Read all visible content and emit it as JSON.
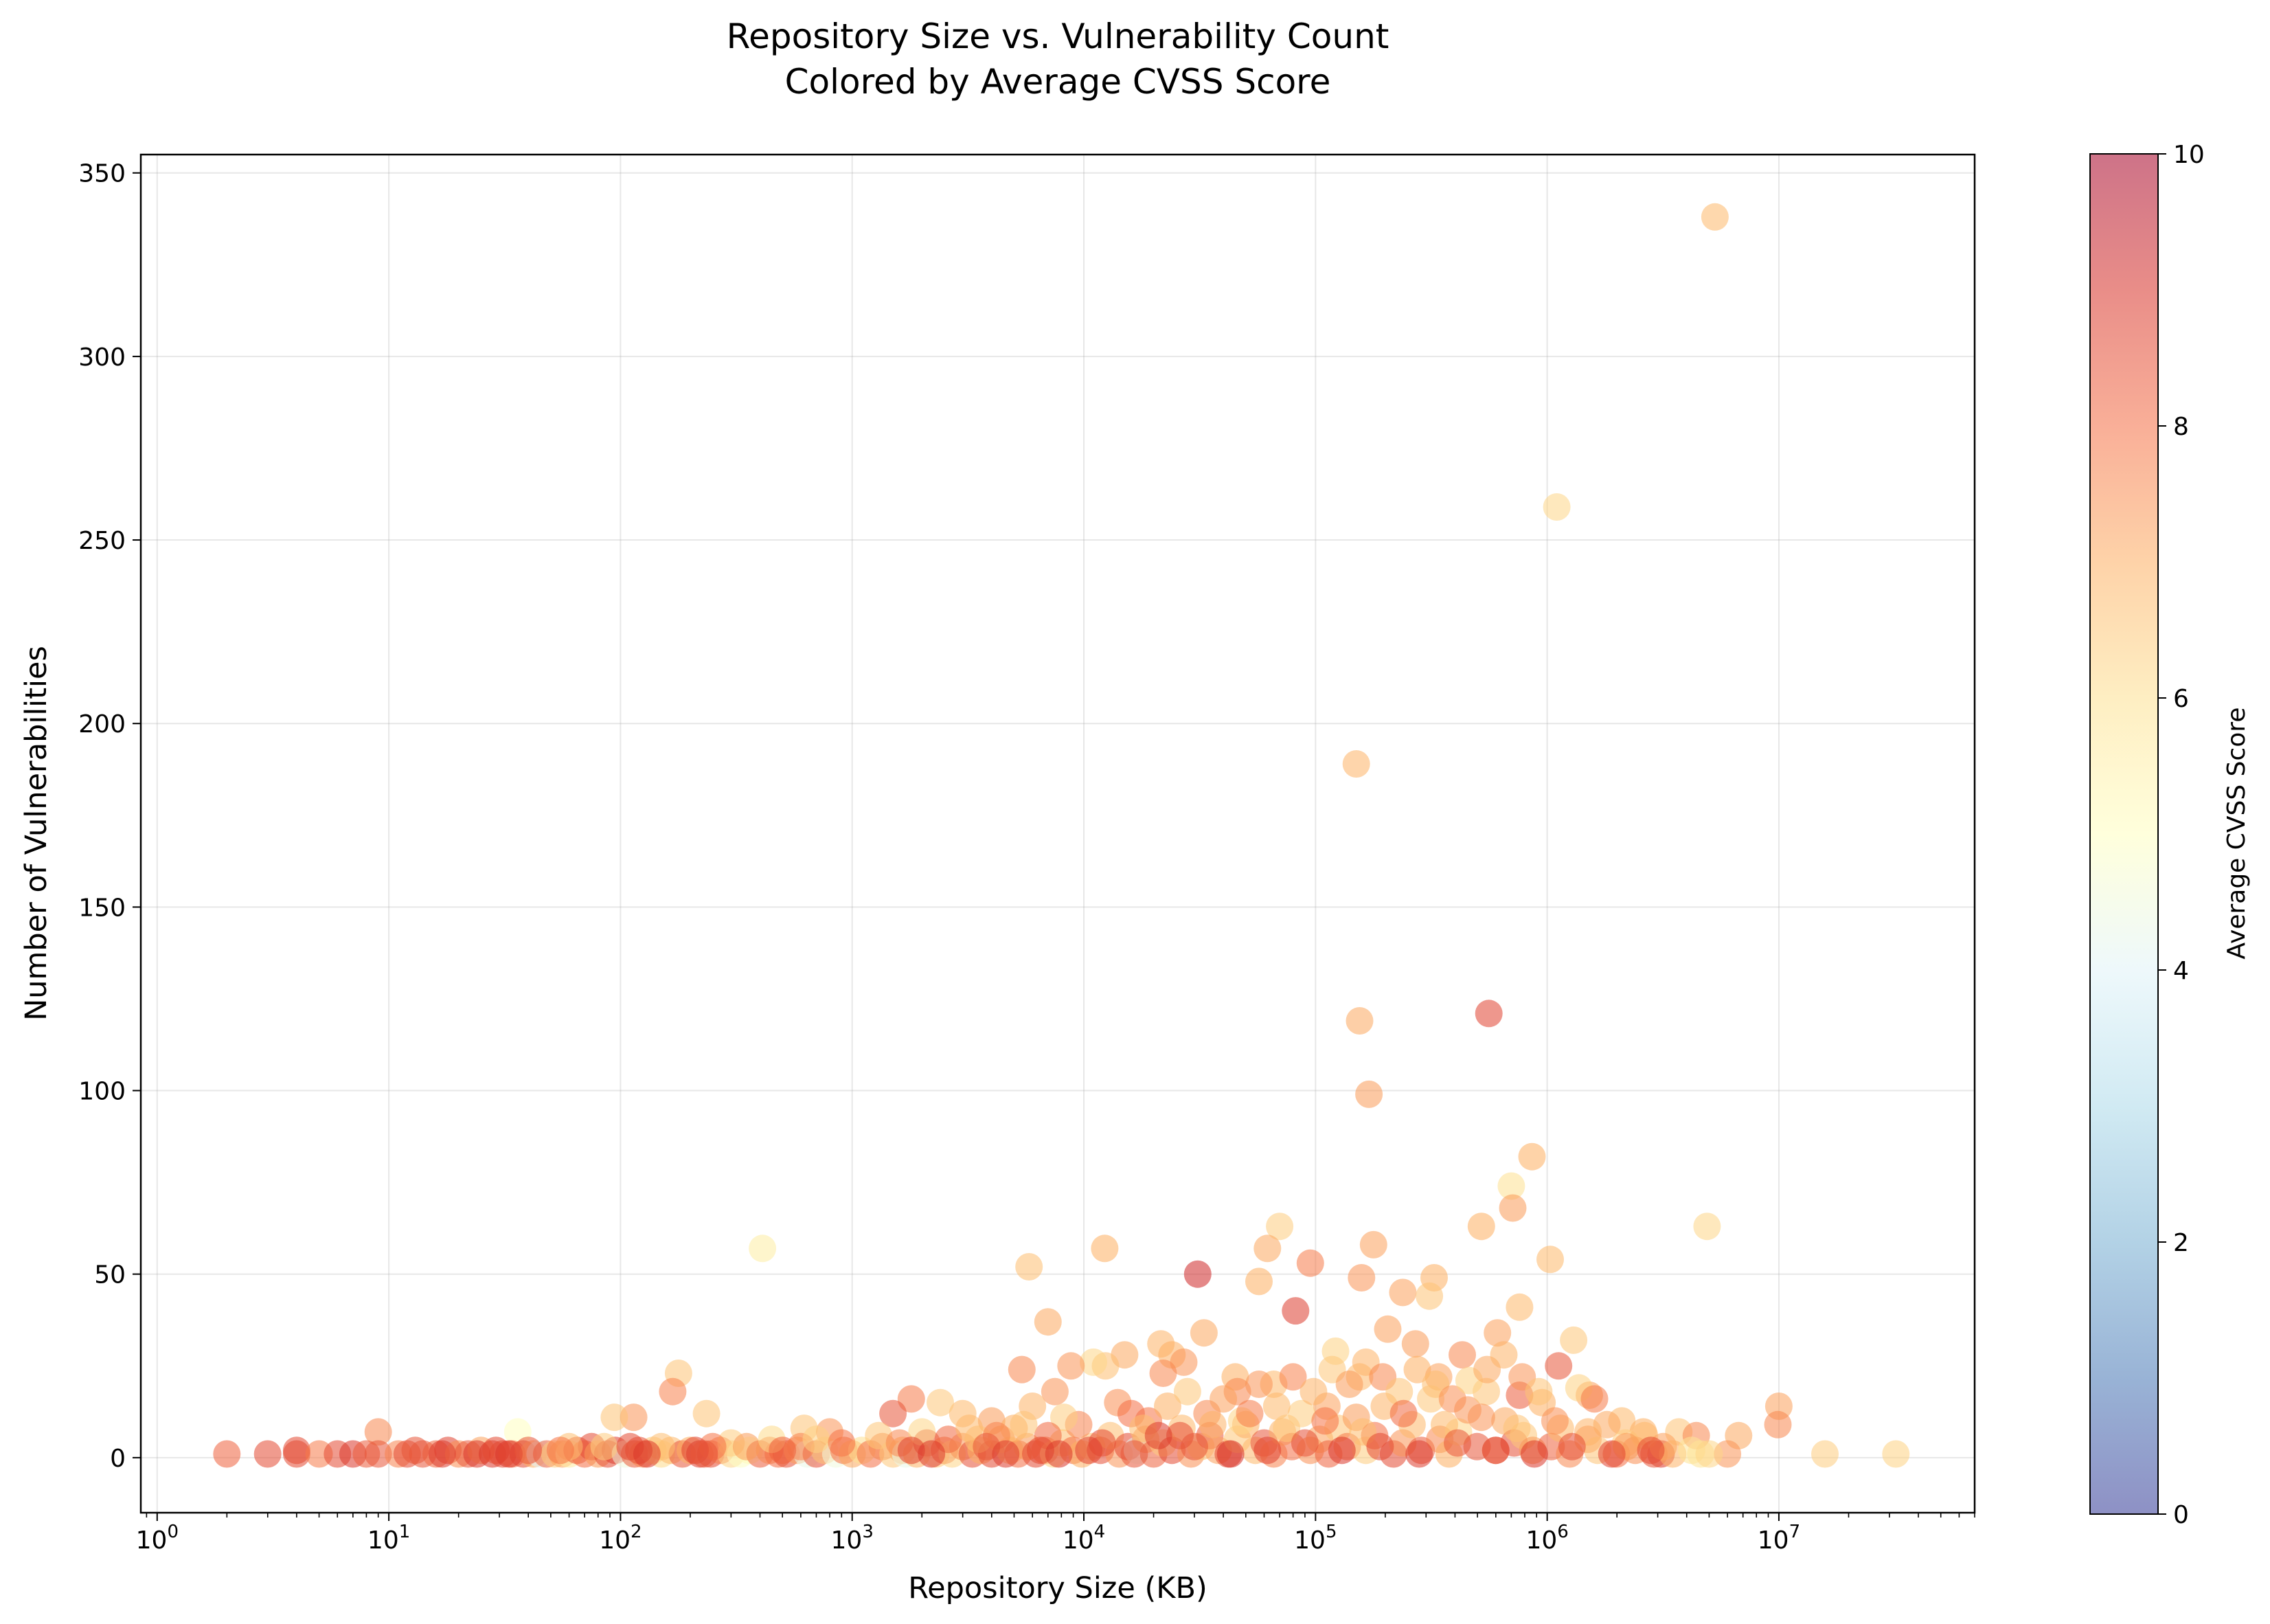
{
  "chart_data": {
    "type": "scatter",
    "title": "Repository Size vs. Vulnerability Count",
    "subtitle": "Colored by Average CVSS Score",
    "xlabel": "Repository Size (KB)",
    "ylabel": "Number of Vulnerabilities",
    "x_scale": "log",
    "x_range": [
      0.85,
      70000000
    ],
    "y_range": [
      -15,
      355
    ],
    "x_ticks": [
      {
        "value": 1,
        "base": "10",
        "exp": "0"
      },
      {
        "value": 10,
        "base": "10",
        "exp": "1"
      },
      {
        "value": 100,
        "base": "10",
        "exp": "2"
      },
      {
        "value": 1000,
        "base": "10",
        "exp": "3"
      },
      {
        "value": 10000,
        "base": "10",
        "exp": "4"
      },
      {
        "value": 100000,
        "base": "10",
        "exp": "5"
      },
      {
        "value": 1000000,
        "base": "10",
        "exp": "6"
      },
      {
        "value": 10000000,
        "base": "10",
        "exp": "7"
      }
    ],
    "y_ticks": [
      0,
      50,
      100,
      150,
      200,
      250,
      300,
      350
    ],
    "grid": true,
    "colorbar": {
      "label": "Average CVSS Score",
      "range": [
        0,
        10
      ],
      "ticks": [
        0,
        2,
        4,
        6,
        8,
        10
      ],
      "colormap": "RdYlBu_r",
      "stops": [
        "#313695",
        "#4575b4",
        "#74add1",
        "#abd9e9",
        "#e0f3f8",
        "#ffffbf",
        "#fee090",
        "#fdae61",
        "#f46d43",
        "#d73027",
        "#a50026"
      ]
    },
    "marker_alpha": 0.55,
    "points": [
      [
        5300000,
        338,
        6.8
      ],
      [
        1100000,
        259,
        6.2
      ],
      [
        150000,
        189,
        6.9
      ],
      [
        560000,
        121,
        8.7
      ],
      [
        155000,
        119,
        7.1
      ],
      [
        170000,
        99,
        7.3
      ],
      [
        860000,
        82,
        7.0
      ],
      [
        700000,
        74,
        6.0
      ],
      [
        710000,
        68,
        7.3
      ],
      [
        4900000,
        63,
        6.2
      ],
      [
        70000,
        63,
        6.4
      ],
      [
        520000,
        63,
        7.0
      ],
      [
        178000,
        58,
        7.2
      ],
      [
        62000,
        57,
        7.1
      ],
      [
        12300,
        57,
        7.0
      ],
      [
        410,
        57,
        5.6
      ],
      [
        95000,
        53,
        7.8
      ],
      [
        1030000,
        54,
        6.8
      ],
      [
        5800,
        52,
        6.7
      ],
      [
        31000,
        50,
        9.2
      ],
      [
        57000,
        48,
        7.0
      ],
      [
        158000,
        49,
        7.4
      ],
      [
        325000,
        49,
        7.0
      ],
      [
        238000,
        45,
        7.2
      ],
      [
        310000,
        44,
        6.6
      ],
      [
        82000,
        40,
        8.8
      ],
      [
        760000,
        41,
        6.8
      ],
      [
        7000,
        37,
        7.1
      ],
      [
        205000,
        35,
        7.2
      ],
      [
        33000,
        34,
        7.1
      ],
      [
        610000,
        34,
        7.2
      ],
      [
        1300000,
        32,
        6.5
      ],
      [
        21500,
        31,
        6.9
      ],
      [
        270000,
        31,
        7.3
      ],
      [
        122000,
        29,
        6.3
      ],
      [
        24000,
        28,
        7.0
      ],
      [
        430000,
        28,
        7.6
      ],
      [
        1120000,
        25,
        8.4
      ],
      [
        15000,
        28,
        7.1
      ],
      [
        12400,
        25,
        6.7
      ],
      [
        27000,
        26,
        7.4
      ],
      [
        11000,
        26,
        6.2
      ],
      [
        8800,
        25,
        7.4
      ],
      [
        5400,
        24,
        7.6
      ],
      [
        178,
        23,
        6.6
      ],
      [
        155000,
        22,
        6.8
      ],
      [
        45000,
        22,
        7.0
      ],
      [
        66000,
        20,
        6.8
      ],
      [
        22000,
        23,
        7.6
      ],
      [
        340000,
        22,
        7.2
      ],
      [
        760000,
        17,
        8.3
      ],
      [
        1520000,
        17,
        7.2
      ],
      [
        168,
        18,
        7.7
      ],
      [
        7500,
        18,
        7.4
      ],
      [
        46000,
        18,
        7.6
      ],
      [
        112000,
        14,
        7.2
      ],
      [
        10000000,
        14,
        7.2
      ],
      [
        9900000,
        9,
        7.6
      ],
      [
        1800,
        16,
        7.8
      ],
      [
        1500,
        12,
        8.4
      ],
      [
        235,
        12,
        6.6
      ],
      [
        114,
        11,
        7.4
      ],
      [
        94,
        11,
        6.6
      ],
      [
        9,
        7,
        7.6
      ],
      [
        36,
        7,
        5.0
      ],
      [
        620,
        8,
        6.6
      ],
      [
        800,
        7,
        7.4
      ],
      [
        6700000,
        6,
        7.1
      ],
      [
        2100000,
        10,
        6.8
      ],
      [
        3700000,
        7,
        6.6
      ],
      [
        4400000,
        6,
        7.6
      ],
      [
        2600000,
        7,
        7.0
      ],
      [
        15800000,
        1,
        6.4
      ],
      [
        32000000,
        1,
        6.3
      ],
      [
        6000000,
        1,
        7.4
      ],
      [
        3100000,
        1,
        8.9
      ],
      [
        4600000,
        1,
        5.9
      ],
      [
        2,
        1,
        8.2
      ],
      [
        3,
        1,
        8.6
      ],
      [
        4,
        1,
        8.6
      ],
      [
        4,
        2,
        8.6
      ],
      [
        5,
        1,
        7.8
      ],
      [
        6,
        1,
        8.6
      ],
      [
        7,
        1,
        8.9
      ],
      [
        8,
        1,
        8.3
      ],
      [
        9,
        1,
        8.4
      ],
      [
        11,
        1,
        7.7
      ],
      [
        12,
        1,
        8.6
      ],
      [
        14,
        1,
        8.4
      ],
      [
        16,
        1,
        8.1
      ],
      [
        18,
        2,
        8.7
      ],
      [
        20,
        1,
        7.5
      ],
      [
        22,
        1,
        8.4
      ],
      [
        25,
        2,
        7.2
      ],
      [
        28,
        1,
        8.9
      ],
      [
        31,
        1,
        8.6
      ],
      [
        34,
        1,
        8.0
      ],
      [
        38,
        1,
        8.6
      ],
      [
        42,
        1,
        7.0
      ],
      [
        45,
        1,
        4.0
      ],
      [
        48,
        1,
        8.2
      ],
      [
        52,
        1,
        6.4
      ],
      [
        56,
        1,
        7.1
      ],
      [
        60,
        1,
        5.6
      ],
      [
        65,
        2,
        8.4
      ],
      [
        70,
        1,
        8.0
      ],
      [
        75,
        3,
        8.6
      ],
      [
        80,
        1,
        7.3
      ],
      [
        88,
        1,
        8.6
      ],
      [
        95,
        2,
        8.8
      ],
      [
        105,
        1,
        4.5
      ],
      [
        115,
        1,
        8.3
      ],
      [
        125,
        1,
        7.6
      ],
      [
        138,
        2,
        6.5
      ],
      [
        150,
        1,
        6.1
      ],
      [
        165,
        2,
        6.8
      ],
      [
        185,
        1,
        8.4
      ],
      [
        200,
        2,
        7.0
      ],
      [
        220,
        1,
        8.8
      ],
      [
        245,
        1,
        8.6
      ],
      [
        270,
        2,
        7.7
      ],
      [
        300,
        1,
        6.2
      ],
      [
        330,
        1,
        4.9
      ],
      [
        360,
        2,
        5.2
      ],
      [
        400,
        1,
        8.3
      ],
      [
        440,
        2,
        7.6
      ],
      [
        480,
        1,
        8.0
      ],
      [
        520,
        1,
        8.5
      ],
      [
        580,
        2,
        7.2
      ],
      [
        640,
        1,
        4.3
      ],
      [
        700,
        1,
        8.5
      ],
      [
        760,
        2,
        6.6
      ],
      [
        850,
        1,
        4.5
      ],
      [
        920,
        2,
        8.0
      ],
      [
        1000,
        1,
        7.1
      ],
      [
        1100,
        2,
        6.0
      ],
      [
        1200,
        1,
        8.0
      ],
      [
        1350,
        3,
        7.6
      ],
      [
        1500,
        1,
        6.5
      ],
      [
        1650,
        2,
        7.0
      ],
      [
        1700,
        1,
        4.3
      ],
      [
        1900,
        1,
        6.9
      ],
      [
        2100,
        4,
        8.4
      ],
      [
        2300,
        1,
        6.4
      ],
      [
        2500,
        2,
        8.0
      ],
      [
        2700,
        1,
        6.2
      ],
      [
        3000,
        3,
        7.4
      ],
      [
        3300,
        1,
        8.5
      ],
      [
        3600,
        2,
        7.0
      ],
      [
        4000,
        1,
        8.6
      ],
      [
        4400,
        5,
        7.1
      ],
      [
        4800,
        2,
        6.7
      ],
      [
        5200,
        1,
        8.0
      ],
      [
        5700,
        3,
        7.3
      ],
      [
        6200,
        1,
        8.6
      ],
      [
        6800,
        2,
        8.2
      ],
      [
        7400,
        1,
        6.2
      ],
      [
        8100,
        4,
        6.7
      ],
      [
        9000,
        2,
        8.0
      ],
      [
        9800,
        1,
        7.0
      ],
      [
        10800,
        3,
        6.6
      ],
      [
        11800,
        2,
        8.5
      ],
      [
        13000,
        6,
        6.7
      ],
      [
        14200,
        1,
        7.4
      ],
      [
        15500,
        3,
        8.6
      ],
      [
        17000,
        2,
        4.2
      ],
      [
        18500,
        5,
        7.3
      ],
      [
        20000,
        1,
        8.2
      ],
      [
        22000,
        4,
        6.4
      ],
      [
        24000,
        2,
        8.6
      ],
      [
        26500,
        8,
        6.8
      ],
      [
        29000,
        1,
        7.5
      ],
      [
        32000,
        3,
        6.6
      ],
      [
        35000,
        6,
        8.3
      ],
      [
        38000,
        2,
        7.2
      ],
      [
        42000,
        1,
        8.6
      ],
      [
        46000,
        5,
        6.5
      ],
      [
        50000,
        9,
        7.0
      ],
      [
        55000,
        2,
        6.8
      ],
      [
        60000,
        4,
        8.4
      ],
      [
        66000,
        1,
        7.7
      ],
      [
        72000,
        7,
        6.9
      ],
      [
        79000,
        3,
        8.0
      ],
      [
        87000,
        12,
        6.4
      ],
      [
        95000,
        2,
        7.5
      ],
      [
        104000,
        5,
        7.2
      ],
      [
        114000,
        1,
        8.2
      ],
      [
        125000,
        8,
        6.6
      ],
      [
        137000,
        3,
        7.8
      ],
      [
        150000,
        11,
        7.3
      ],
      [
        165000,
        2,
        6.4
      ],
      [
        180000,
        6,
        8.0
      ],
      [
        198000,
        14,
        6.9
      ],
      [
        217000,
        1,
        8.6
      ],
      [
        238000,
        4,
        7.4
      ],
      [
        261000,
        9,
        6.8
      ],
      [
        286000,
        2,
        8.3
      ],
      [
        314000,
        16,
        6.5
      ],
      [
        344000,
        5,
        7.6
      ],
      [
        377000,
        1,
        7.0
      ],
      [
        414000,
        7,
        6.2
      ],
      [
        454000,
        13,
        7.4
      ],
      [
        498000,
        3,
        8.4
      ],
      [
        546000,
        18,
        6.6
      ],
      [
        599000,
        2,
        7.8
      ],
      [
        657000,
        10,
        7.1
      ],
      [
        720000,
        4,
        8.5
      ],
      [
        790000,
        6,
        6.5
      ],
      [
        866000,
        2,
        7.3
      ],
      [
        950000,
        15,
        7.0
      ],
      [
        1040000,
        3,
        8.2
      ],
      [
        1140000,
        8,
        6.8
      ],
      [
        1250000,
        1,
        7.6
      ],
      [
        1370000,
        19,
        6.3
      ],
      [
        1500000,
        5,
        7.4
      ],
      [
        1650000,
        2,
        6.6
      ],
      [
        1810000,
        9,
        7.1
      ],
      [
        1990000,
        1,
        8.0
      ],
      [
        2180000,
        4,
        6.4
      ],
      [
        2400000,
        2,
        7.5
      ],
      [
        2630000,
        6,
        6.8
      ],
      [
        2890000,
        1,
        8.4
      ],
      [
        3170000,
        3,
        7.2
      ],
      [
        3480000,
        1,
        6.9
      ],
      [
        4200000,
        2,
        5.9
      ],
      [
        5000000,
        1,
        6.2
      ],
      [
        19000,
        10,
        7.9
      ],
      [
        23000,
        14,
        7.0
      ],
      [
        28000,
        18,
        6.5
      ],
      [
        34000,
        12,
        7.6
      ],
      [
        40000,
        16,
        7.2
      ],
      [
        48000,
        10,
        6.2
      ],
      [
        57000,
        20,
        7.4
      ],
      [
        68000,
        14,
        6.8
      ],
      [
        80000,
        22,
        7.7
      ],
      [
        98000,
        18,
        6.9
      ],
      [
        118000,
        24,
        6.5
      ],
      [
        140000,
        20,
        7.3
      ],
      [
        165000,
        26,
        6.9
      ],
      [
        195000,
        22,
        7.6
      ],
      [
        230000,
        18,
        6.6
      ],
      [
        275000,
        24,
        7.0
      ],
      [
        330000,
        20,
        6.7
      ],
      [
        390000,
        16,
        7.5
      ],
      [
        460000,
        21,
        6.3
      ],
      [
        550000,
        24,
        7.1
      ],
      [
        650000,
        28,
        6.9
      ],
      [
        780000,
        22,
        7.4
      ],
      [
        920000,
        18,
        6.6
      ],
      [
        1600000,
        16,
        7.8
      ],
      [
        6000,
        14,
        6.9
      ],
      [
        4000,
        10,
        7.3
      ],
      [
        3000,
        12,
        6.8
      ],
      [
        2400,
        15,
        6.5
      ],
      [
        14000,
        15,
        7.5
      ],
      [
        16000,
        12,
        8.0
      ],
      [
        18000,
        8,
        6.7
      ],
      [
        9500,
        9,
        7.7
      ],
      [
        8200,
        11,
        6.4
      ],
      [
        7000,
        6,
        8.1
      ],
      [
        5000,
        8,
        7.0
      ],
      [
        3500,
        5,
        6.6
      ],
      [
        26000,
        6,
        8.5
      ],
      [
        36000,
        9,
        6.9
      ],
      [
        52000,
        12,
        7.8
      ],
      [
        75000,
        8,
        6.5
      ],
      [
        110000,
        10,
        7.9
      ],
      [
        160000,
        7,
        6.7
      ],
      [
        240000,
        12,
        8.1
      ],
      [
        360000,
        9,
        6.8
      ],
      [
        520000,
        11,
        7.4
      ],
      [
        740000,
        8,
        6.6
      ],
      [
        1080000,
        10,
        7.5
      ],
      [
        1500000,
        7,
        6.9
      ],
      [
        2200000,
        3,
        7.3
      ],
      [
        12000,
        4,
        8.6
      ],
      [
        21000,
        6,
        8.8
      ],
      [
        30000,
        3,
        8.4
      ],
      [
        43000,
        1,
        9.0
      ],
      [
        62000,
        2,
        8.7
      ],
      [
        90000,
        4,
        8.5
      ],
      [
        130000,
        2,
        8.9
      ],
      [
        190000,
        3,
        8.6
      ],
      [
        280000,
        1,
        8.8
      ],
      [
        410000,
        4,
        8.4
      ],
      [
        600000,
        2,
        8.7
      ],
      [
        880000,
        1,
        8.9
      ],
      [
        1280000,
        3,
        8.5
      ],
      [
        1900000,
        1,
        8.7
      ],
      [
        2800000,
        2,
        8.6
      ],
      [
        600,
        3,
        7.7
      ],
      [
        700,
        5,
        6.3
      ],
      [
        900,
        4,
        7.9
      ],
      [
        1300,
        6,
        6.5
      ],
      [
        1600,
        4,
        7.6
      ],
      [
        2000,
        7,
        6.2
      ],
      [
        2600,
        5,
        8.1
      ],
      [
        3200,
        8,
        6.8
      ],
      [
        4200,
        6,
        7.7
      ],
      [
        5500,
        9,
        6.6
      ],
      [
        300,
        4,
        6.4
      ],
      [
        350,
        3,
        7.3
      ],
      [
        450,
        5,
        6.1
      ],
      [
        500,
        2,
        8.2
      ],
      [
        250,
        3,
        7.9
      ],
      [
        150,
        3,
        6.7
      ],
      [
        120,
        2,
        8.5
      ],
      [
        60,
        3,
        6.7
      ],
      [
        55,
        2,
        7.9
      ],
      [
        85,
        3,
        6.4
      ],
      [
        13,
        2,
        8.4
      ],
      [
        17,
        1,
        8.8
      ],
      [
        24,
        1,
        8.9
      ],
      [
        29,
        2,
        8.6
      ],
      [
        33,
        1,
        8.9
      ],
      [
        40,
        2,
        8.4
      ],
      [
        110,
        3,
        8.6
      ],
      [
        130,
        1,
        8.9
      ],
      [
        210,
        2,
        8.7
      ],
      [
        230,
        1,
        8.4
      ],
      [
        1800,
        2,
        8.7
      ],
      [
        2200,
        1,
        8.9
      ],
      [
        3800,
        3,
        8.4
      ],
      [
        4600,
        1,
        8.8
      ],
      [
        6500,
        2,
        8.6
      ],
      [
        7800,
        1,
        8.9
      ],
      [
        10500,
        2,
        8.7
      ],
      [
        16500,
        1,
        8.4
      ]
    ]
  }
}
